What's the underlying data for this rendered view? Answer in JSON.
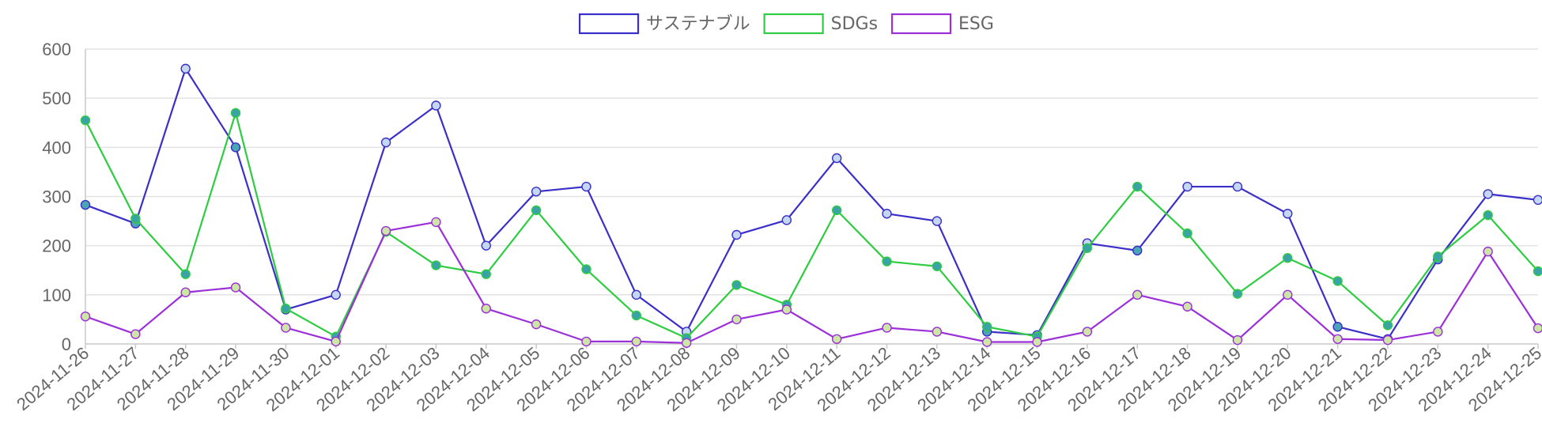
{
  "chart_data": {
    "type": "line",
    "title": "",
    "xlabel": "",
    "ylabel": "",
    "ylim": [
      0,
      600
    ],
    "yticks": [
      0,
      100,
      200,
      300,
      400,
      500,
      600
    ],
    "grid": true,
    "legend_position": "top-center",
    "categories": [
      "2024-11-26",
      "2024-11-27",
      "2024-11-28",
      "2024-11-29",
      "2024-11-30",
      "2024-12-01",
      "2024-12-02",
      "2024-12-03",
      "2024-12-04",
      "2024-12-05",
      "2024-12-06",
      "2024-12-07",
      "2024-12-08",
      "2024-12-09",
      "2024-12-10",
      "2024-12-11",
      "2024-12-12",
      "2024-12-13",
      "2024-12-14",
      "2024-12-15",
      "2024-12-16",
      "2024-12-17",
      "2024-12-18",
      "2024-12-19",
      "2024-12-20",
      "2024-12-21",
      "2024-12-22",
      "2024-12-23",
      "2024-12-24",
      "2024-12-25"
    ],
    "series": [
      {
        "name": "サステナブル",
        "color": "#3a2fc8",
        "values": [
          283,
          245,
          560,
          400,
          70,
          100,
          410,
          485,
          200,
          310,
          320,
          100,
          25,
          222,
          252,
          378,
          265,
          250,
          25,
          18,
          205,
          190,
          320,
          320,
          265,
          35,
          10,
          172,
          305,
          293
        ]
      },
      {
        "name": "SDGs",
        "color": "#2ecc40",
        "values": [
          455,
          255,
          142,
          470,
          72,
          15,
          228,
          160,
          142,
          272,
          152,
          58,
          12,
          120,
          80,
          272,
          168,
          158,
          35,
          15,
          195,
          320,
          225,
          102,
          175,
          128,
          38,
          178,
          262,
          148
        ]
      },
      {
        "name": "ESG",
        "color": "#9b30d9",
        "values": [
          56,
          20,
          105,
          115,
          33,
          5,
          230,
          248,
          72,
          40,
          5,
          5,
          2,
          50,
          70,
          10,
          33,
          25,
          4,
          4,
          25,
          100,
          76,
          8,
          100,
          10,
          8,
          25,
          188,
          32
        ]
      }
    ]
  }
}
